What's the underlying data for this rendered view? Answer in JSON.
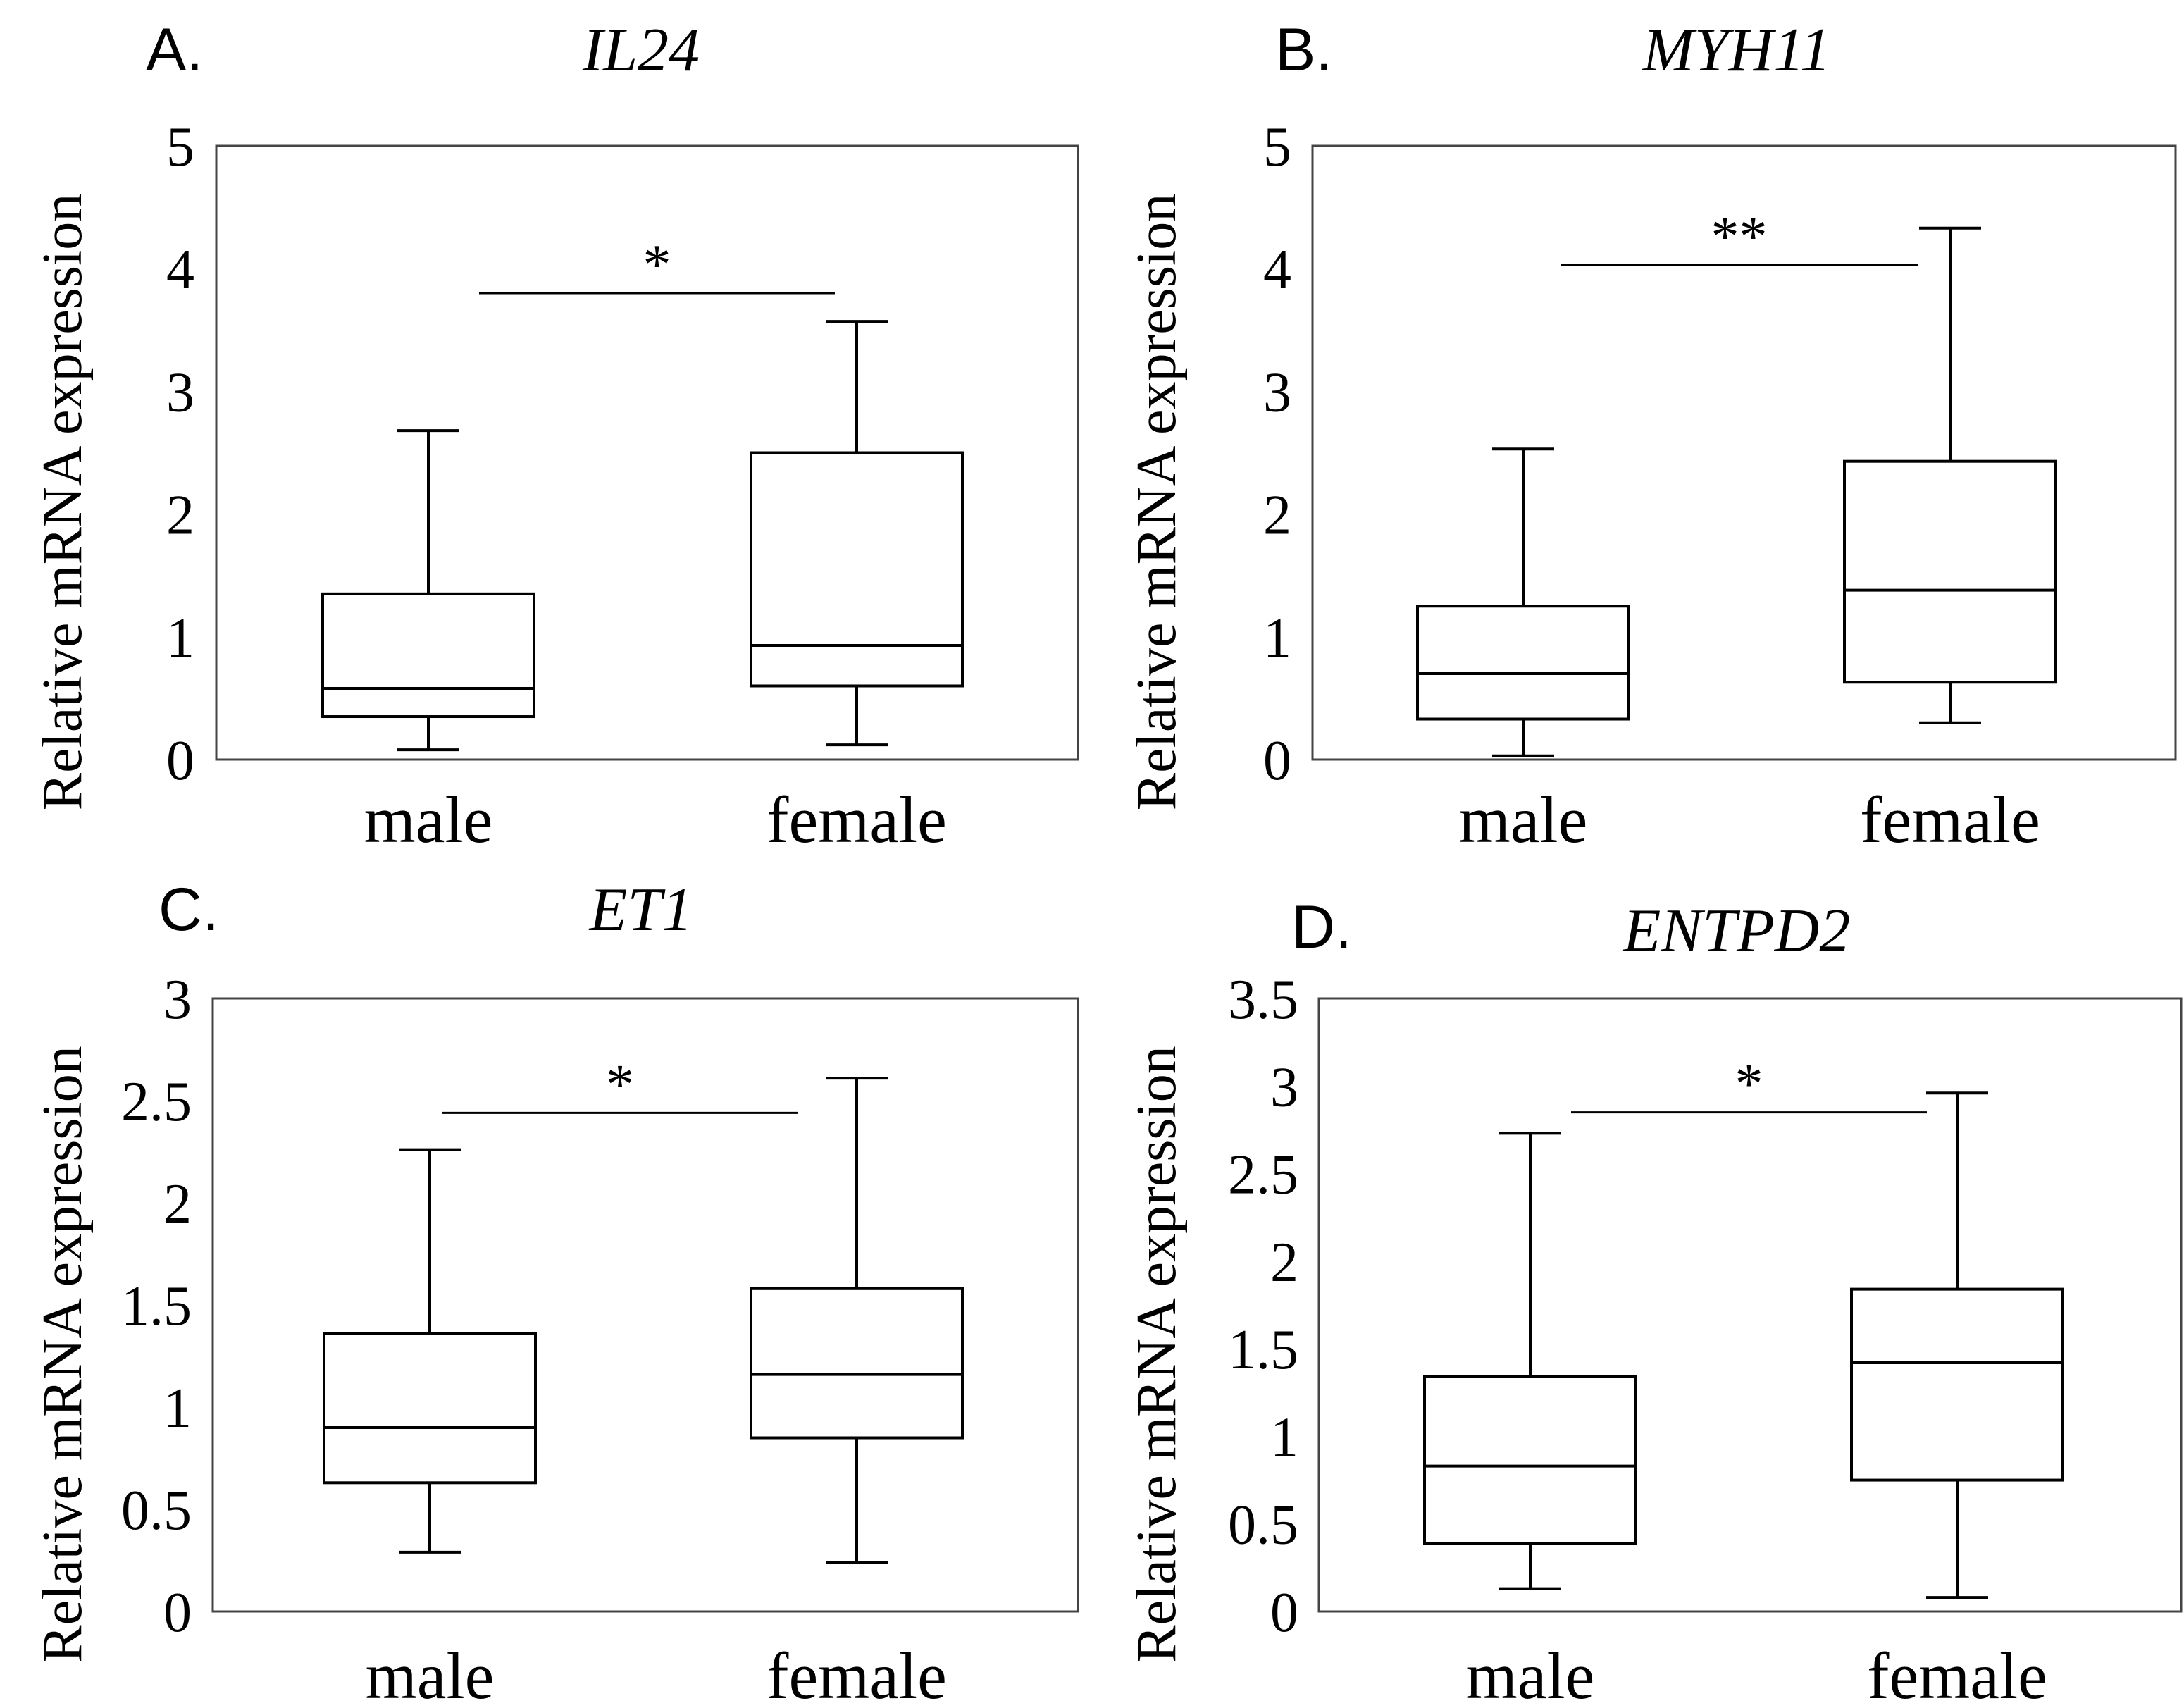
{
  "figure": {
    "ylabel": "Relative mRNA expression",
    "categories": [
      "male",
      "female"
    ],
    "colors": {
      "stroke": "#000000",
      "frame": "#444444",
      "background": "#ffffff"
    }
  },
  "chart_data": [
    {
      "type": "box",
      "panel_label": "A.",
      "title": "IL24",
      "ylabel": "Relative mRNA expression",
      "categories": [
        "male",
        "female"
      ],
      "ylim": [
        0,
        5
      ],
      "yticks": [
        0,
        1,
        2,
        3,
        4,
        5
      ],
      "ytick_labels": [
        "0",
        "1",
        "2",
        "3",
        "4",
        "5"
      ],
      "boxes": [
        {
          "name": "male",
          "min": 0.08,
          "q1": 0.35,
          "median": 0.58,
          "q3": 1.35,
          "max": 2.68
        },
        {
          "name": "female",
          "min": 0.12,
          "q1": 0.6,
          "median": 0.93,
          "q3": 2.5,
          "max": 3.57
        }
      ],
      "significance": {
        "label": "*",
        "y": 3.8
      }
    },
    {
      "type": "box",
      "panel_label": "B.",
      "title": "MYH11",
      "ylabel": "Relative mRNA expression",
      "categories": [
        "male",
        "female"
      ],
      "ylim": [
        0,
        5
      ],
      "yticks": [
        0,
        1,
        2,
        3,
        4,
        5
      ],
      "ytick_labels": [
        "0",
        "1",
        "2",
        "3",
        "4",
        "5"
      ],
      "boxes": [
        {
          "name": "male",
          "min": 0.03,
          "q1": 0.33,
          "median": 0.7,
          "q3": 1.25,
          "max": 2.53
        },
        {
          "name": "female",
          "min": 0.3,
          "q1": 0.63,
          "median": 1.38,
          "q3": 2.43,
          "max": 4.33
        }
      ],
      "significance": {
        "label": "**",
        "y": 4.03
      }
    },
    {
      "type": "box",
      "panel_label": "C.",
      "title": "ET1",
      "ylabel": "Relative mRNA expression",
      "categories": [
        "male",
        "female"
      ],
      "ylim": [
        0,
        3
      ],
      "yticks": [
        0,
        0.5,
        1,
        1.5,
        2,
        2.5,
        3
      ],
      "ytick_labels": [
        "0",
        "0.5",
        "1",
        "1.5",
        "2",
        "2.5",
        "3"
      ],
      "boxes": [
        {
          "name": "male",
          "min": 0.29,
          "q1": 0.63,
          "median": 0.9,
          "q3": 1.36,
          "max": 2.26
        },
        {
          "name": "female",
          "min": 0.24,
          "q1": 0.85,
          "median": 1.16,
          "q3": 1.58,
          "max": 2.61
        }
      ],
      "significance": {
        "label": "*",
        "y": 2.44
      }
    },
    {
      "type": "box",
      "panel_label": "D.",
      "title": "ENTPD2",
      "ylabel": "Relative mRNA expression",
      "categories": [
        "male",
        "female"
      ],
      "ylim": [
        0,
        3.5
      ],
      "yticks": [
        0,
        0.5,
        1,
        1.5,
        2,
        2.5,
        3,
        3.5
      ],
      "ytick_labels": [
        "0",
        "0.5",
        "1",
        "1.5",
        "2",
        "2.5",
        "3",
        "3.5"
      ],
      "boxes": [
        {
          "name": "male",
          "min": 0.13,
          "q1": 0.39,
          "median": 0.83,
          "q3": 1.34,
          "max": 2.73
        },
        {
          "name": "female",
          "min": 0.08,
          "q1": 0.75,
          "median": 1.42,
          "q3": 1.84,
          "max": 2.96
        }
      ],
      "significance": {
        "label": "*",
        "y": 2.85
      }
    }
  ]
}
